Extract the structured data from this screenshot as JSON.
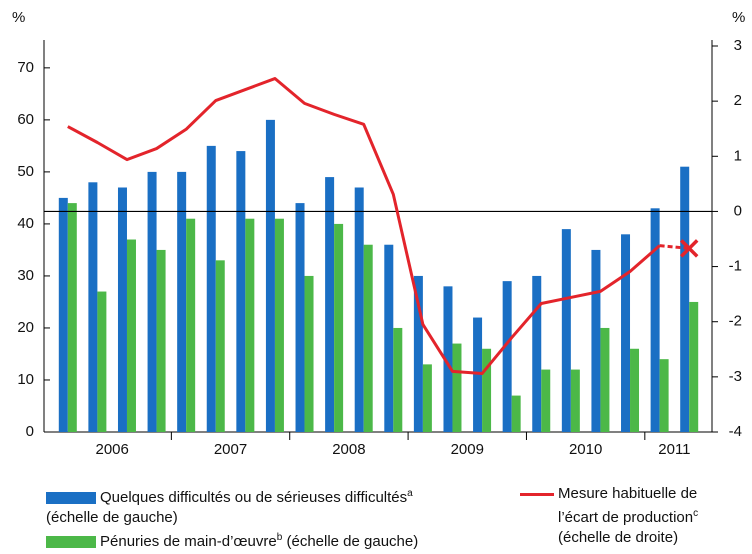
{
  "chart_data": {
    "type": "bar-line",
    "y_unit": "%",
    "y2_unit": "%",
    "categories": [
      "2006",
      null,
      null,
      null,
      "2007",
      null,
      null,
      null,
      "2008",
      null,
      null,
      null,
      "2009",
      null,
      null,
      null,
      "2010",
      null,
      null,
      null,
      "2011",
      null
    ],
    "series": [
      {
        "name": "Quelques difficultés ou de sérieuses difficultés",
        "note": "a",
        "scale_label": "(échelle de gauche)",
        "color": "#1a6fc4",
        "kind": "bar",
        "values": [
          45,
          48,
          47,
          50,
          50,
          55,
          54,
          60,
          44,
          49,
          47,
          36,
          30,
          28,
          22,
          29,
          30,
          39,
          35,
          38,
          43,
          51
        ]
      },
      {
        "name": "Pénuries de main-d’œuvre",
        "note": "b",
        "scale_label": "(échelle de gauche)",
        "color": "#4cb848",
        "kind": "bar",
        "values": [
          44,
          27,
          37,
          35,
          41,
          33,
          41,
          41,
          30,
          40,
          36,
          20,
          13,
          17,
          16,
          7,
          12,
          12,
          20,
          16,
          14,
          25
        ]
      },
      {
        "name": "Mesure habituelle de l’écart de production",
        "note": "c",
        "scale_label": "(échelle de droite)",
        "color": "#e3242b",
        "kind": "line",
        "axis": "y2",
        "estimate_last": true,
        "values": [
          1.54,
          1.25,
          0.94,
          1.14,
          1.49,
          2.01,
          2.21,
          2.41,
          1.96,
          1.76,
          1.58,
          0.31,
          -2.05,
          -2.9,
          -2.94,
          -2.29,
          -1.67,
          -1.56,
          -1.45,
          -1.09,
          -0.62,
          -0.67
        ]
      }
    ],
    "ylim": [
      0,
      74.2
    ],
    "yticks": [
      0,
      10,
      20,
      30,
      40,
      50,
      60,
      70
    ],
    "y2lim": [
      -4,
      3
    ],
    "y2ticks": [
      -4,
      -3,
      -2,
      -1,
      0,
      1,
      2,
      3
    ],
    "y2_zero_line": true
  }
}
